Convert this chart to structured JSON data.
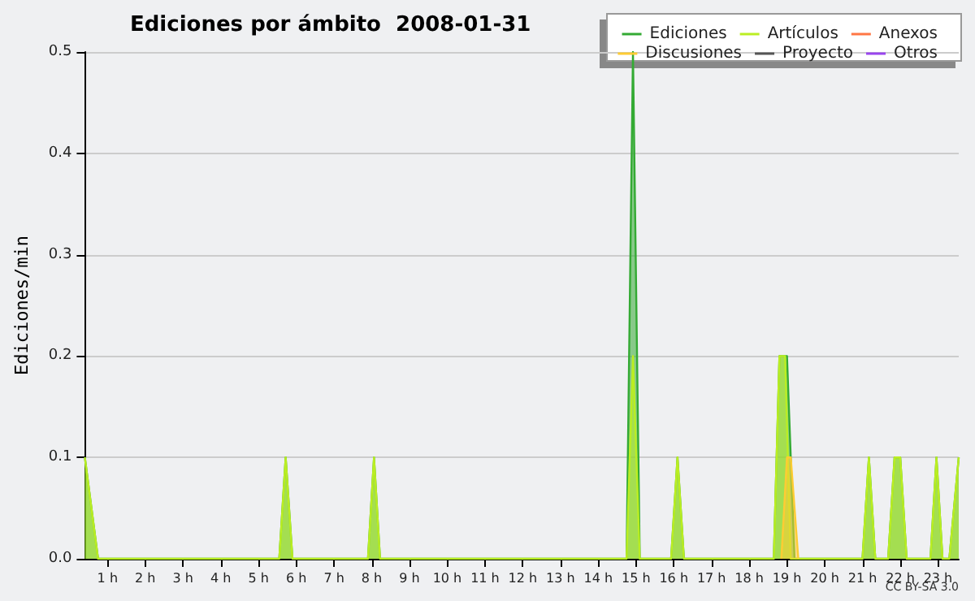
{
  "chart_data": {
    "type": "area",
    "title": "Ediciones por ámbito  2008-01-31",
    "ylabel": "Ediciones/min",
    "xlim": [
      0.4,
      23.55
    ],
    "xticks": [
      {
        "value": 1,
        "label": "1 h"
      },
      {
        "value": 2,
        "label": "2 h"
      },
      {
        "value": 3,
        "label": "3 h"
      },
      {
        "value": 4,
        "label": "4 h"
      },
      {
        "value": 5,
        "label": "5 h"
      },
      {
        "value": 6,
        "label": "6 h"
      },
      {
        "value": 7,
        "label": "7 h"
      },
      {
        "value": 8,
        "label": "8 h"
      },
      {
        "value": 9,
        "label": "9 h"
      },
      {
        "value": 10,
        "label": "10 h"
      },
      {
        "value": 11,
        "label": "11 h"
      },
      {
        "value": 12,
        "label": "12 h"
      },
      {
        "value": 13,
        "label": "13 h"
      },
      {
        "value": 14,
        "label": "14 h"
      },
      {
        "value": 15,
        "label": "15 h"
      },
      {
        "value": 16,
        "label": "16 h"
      },
      {
        "value": 17,
        "label": "17 h"
      },
      {
        "value": 18,
        "label": "18 h"
      },
      {
        "value": 19,
        "label": "19 h"
      },
      {
        "value": 20,
        "label": "20 h"
      },
      {
        "value": 21,
        "label": "21 h"
      },
      {
        "value": 22,
        "label": "22 h"
      },
      {
        "value": 23,
        "label": "23 h"
      }
    ],
    "ylim": [
      0,
      0.5
    ],
    "yticks": [
      {
        "value": 0,
        "label": "0.0"
      },
      0.1,
      0.2,
      0.3,
      0.4,
      0.5
    ],
    "grid": "y",
    "legend": "top right",
    "marker": "none",
    "annotations": [
      "CC BY-SA 3.0"
    ],
    "series": [
      {
        "name": "Ediciones",
        "color": "#33aa33",
        "x": [
          0.4,
          0.75,
          5.55,
          5.72,
          5.9,
          7.9,
          8.06,
          8.22,
          14.75,
          14.92,
          15.1,
          15.93,
          16.1,
          16.27,
          18.65,
          18.8,
          19.0,
          19.2,
          21.0,
          21.17,
          21.34,
          21.68,
          21.85,
          22.0,
          22.17,
          22.8,
          22.96,
          23.12,
          23.3,
          23.55
        ],
        "values": [
          0.1,
          0,
          0,
          0.1,
          0,
          0,
          0.1,
          0,
          0,
          0.5,
          0,
          0,
          0.1,
          0,
          0,
          0.2,
          0.2,
          0,
          0,
          0.1,
          0,
          0,
          0.1,
          0.1,
          0,
          0,
          0.1,
          0,
          0,
          0.1
        ]
      },
      {
        "name": "Artículos",
        "color": "#bbee22",
        "x": [
          0.4,
          0.75,
          5.55,
          5.72,
          5.9,
          7.9,
          8.06,
          8.22,
          14.75,
          14.92,
          15.1,
          15.93,
          16.1,
          16.27,
          18.65,
          18.8,
          18.95,
          19.1,
          21.0,
          21.17,
          21.34,
          21.68,
          21.85,
          22.0,
          22.17,
          22.8,
          22.96,
          23.12,
          23.3,
          23.55
        ],
        "values": [
          0.1,
          0,
          0,
          0.1,
          0,
          0,
          0.1,
          0,
          0,
          0.2,
          0,
          0,
          0.1,
          0,
          0,
          0.2,
          0.2,
          0,
          0,
          0.1,
          0,
          0,
          0.1,
          0.1,
          0,
          0,
          0.1,
          0,
          0,
          0.1
        ]
      },
      {
        "name": "Anexos",
        "color": "#ff7744"
      },
      {
        "name": "Discusiones",
        "color": "#ffcc33",
        "x": [
          18.85,
          19.0,
          19.1,
          19.3
        ],
        "values": [
          0,
          0.1,
          0.1,
          0
        ]
      },
      {
        "name": "Proyecto",
        "color": "#555555"
      },
      {
        "name": "Otros",
        "color": "#9944ee"
      }
    ]
  }
}
